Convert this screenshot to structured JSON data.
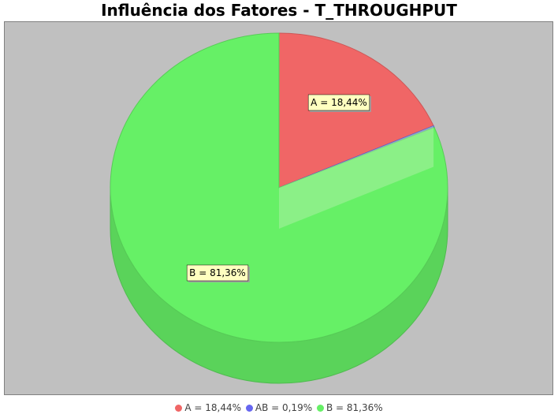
{
  "chart_data": {
    "type": "pie",
    "title": "Influência dos Fatores - T_THROUGHPUT",
    "slices": [
      {
        "name": "A",
        "value": 18.44,
        "label": "A = 18,44%",
        "color": "#f06666"
      },
      {
        "name": "AB",
        "value": 0.19,
        "label": "AB = 0,19%",
        "color": "#6666f0"
      },
      {
        "name": "B",
        "value": 81.36,
        "label": "B = 81,36%",
        "color": "#66f066"
      }
    ],
    "plot_background": "#c0c0c0",
    "style": "3d",
    "legend_position": "bottom"
  }
}
